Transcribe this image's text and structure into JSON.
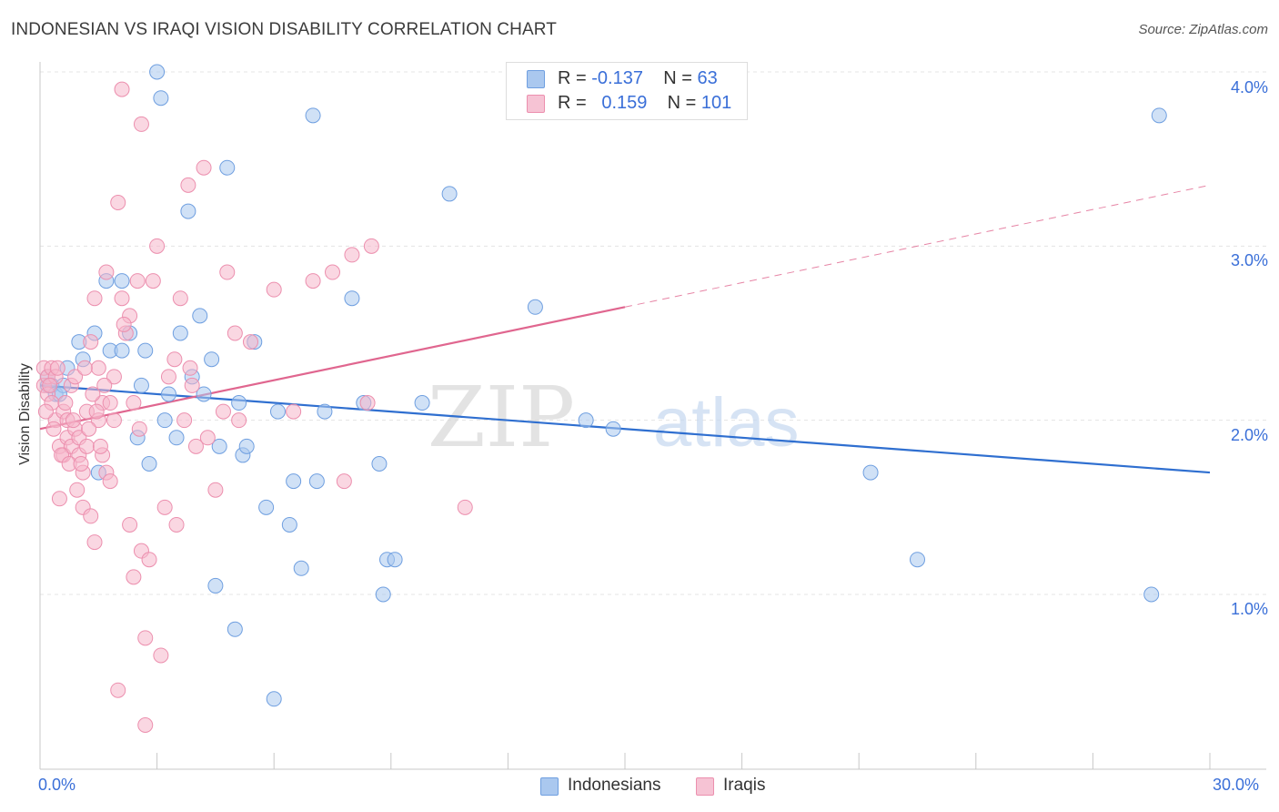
{
  "title": "INDONESIAN VS IRAQI VISION DISABILITY CORRELATION CHART",
  "source": "Source: ZipAtlas.com",
  "watermark": {
    "zip": "ZIP",
    "atlas": "atlas"
  },
  "legend": {
    "rows": [
      {
        "r_label": "R =",
        "r_value": "-0.137",
        "n_label": "N =",
        "n_value": "63"
      },
      {
        "r_label": "R =",
        "r_value": "0.159",
        "n_label": "N =",
        "n_value": "101"
      }
    ]
  },
  "bottom_legend": [
    "Indonesians",
    "Iraqis"
  ],
  "colors": {
    "blue_fill": "#aac8ef",
    "blue_stroke": "#6f9fe0",
    "blue_line": "#2f6fd0",
    "pink_fill": "#f6b6cb",
    "pink_stroke": "#ec8fae",
    "pink_line": "#e0668f",
    "tick_text": "#3a6fd8"
  },
  "chart_data": {
    "type": "scatter",
    "title": "INDONESIAN VS IRAQI VISION DISABILITY CORRELATION CHART",
    "xlabel": "",
    "ylabel": "Vision Disability",
    "xlim": [
      0,
      30
    ],
    "ylim": [
      0,
      4.2
    ],
    "x_tick_labels": [
      "0.0%",
      "30.0%"
    ],
    "y_tick_labels": [
      "1.0%",
      "2.0%",
      "3.0%",
      "4.0%"
    ],
    "y_ticks": [
      1.0,
      2.0,
      3.0,
      4.0
    ],
    "grid": true,
    "legend_position": "top-center",
    "series": [
      {
        "name": "Indonesians",
        "color": "#aac8ef",
        "trend": {
          "x": [
            0,
            30
          ],
          "y": [
            2.2,
            1.7
          ],
          "style": "solid"
        },
        "points": [
          [
            0.2,
            2.2
          ],
          [
            0.2,
            2.25
          ],
          [
            0.3,
            2.2
          ],
          [
            0.4,
            2.15
          ],
          [
            0.6,
            2.2
          ],
          [
            0.7,
            2.3
          ],
          [
            1.0,
            2.45
          ],
          [
            1.1,
            2.35
          ],
          [
            1.4,
            2.5
          ],
          [
            1.5,
            1.7
          ],
          [
            1.7,
            2.8
          ],
          [
            1.8,
            2.4
          ],
          [
            2.1,
            2.4
          ],
          [
            2.1,
            2.8
          ],
          [
            2.3,
            2.5
          ],
          [
            2.5,
            1.9
          ],
          [
            2.6,
            2.2
          ],
          [
            2.7,
            2.4
          ],
          [
            2.8,
            1.75
          ],
          [
            3.0,
            4.0
          ],
          [
            3.1,
            3.85
          ],
          [
            3.2,
            2.0
          ],
          [
            3.3,
            2.15
          ],
          [
            3.5,
            1.9
          ],
          [
            3.6,
            2.5
          ],
          [
            3.8,
            3.2
          ],
          [
            3.9,
            2.25
          ],
          [
            4.1,
            2.6
          ],
          [
            4.2,
            2.15
          ],
          [
            4.4,
            2.35
          ],
          [
            4.5,
            1.05
          ],
          [
            4.6,
            1.85
          ],
          [
            4.8,
            3.45
          ],
          [
            5.0,
            0.8
          ],
          [
            5.1,
            2.1
          ],
          [
            5.2,
            1.8
          ],
          [
            5.3,
            1.85
          ],
          [
            5.5,
            2.45
          ],
          [
            5.8,
            1.5
          ],
          [
            6.0,
            0.4
          ],
          [
            6.1,
            2.05
          ],
          [
            6.4,
            1.4
          ],
          [
            6.5,
            1.65
          ],
          [
            6.7,
            1.15
          ],
          [
            7.0,
            3.75
          ],
          [
            7.1,
            1.65
          ],
          [
            7.3,
            2.05
          ],
          [
            8.0,
            2.7
          ],
          [
            8.3,
            2.1
          ],
          [
            8.7,
            1.75
          ],
          [
            8.8,
            1.0
          ],
          [
            8.9,
            1.2
          ],
          [
            9.1,
            1.2
          ],
          [
            9.8,
            2.1
          ],
          [
            10.5,
            3.3
          ],
          [
            12.7,
            2.65
          ],
          [
            14.0,
            2.0
          ],
          [
            14.7,
            1.95
          ],
          [
            21.3,
            1.7
          ],
          [
            22.5,
            1.2
          ],
          [
            28.5,
            1.0
          ],
          [
            28.7,
            3.75
          ],
          [
            0.5,
            2.15
          ]
        ]
      },
      {
        "name": "Iraqis",
        "color": "#f6b6cb",
        "trend": {
          "x": [
            0,
            15
          ],
          "y": [
            1.95,
            2.65
          ],
          "style": "solid",
          "extended_to": [
            30,
            3.35
          ],
          "extended_style": "dashed"
        },
        "points": [
          [
            0.1,
            2.2
          ],
          [
            0.1,
            2.3
          ],
          [
            0.2,
            2.15
          ],
          [
            0.2,
            2.25
          ],
          [
            0.3,
            2.1
          ],
          [
            0.3,
            2.3
          ],
          [
            0.4,
            2.0
          ],
          [
            0.4,
            2.25
          ],
          [
            0.5,
            1.85
          ],
          [
            0.5,
            1.55
          ],
          [
            0.6,
            2.05
          ],
          [
            0.6,
            1.8
          ],
          [
            0.7,
            2.0
          ],
          [
            0.7,
            1.9
          ],
          [
            0.8,
            1.85
          ],
          [
            0.8,
            2.2
          ],
          [
            0.9,
            1.95
          ],
          [
            0.9,
            2.25
          ],
          [
            1.0,
            1.8
          ],
          [
            1.0,
            1.9
          ],
          [
            1.1,
            1.5
          ],
          [
            1.1,
            1.7
          ],
          [
            1.2,
            2.05
          ],
          [
            1.2,
            1.85
          ],
          [
            1.3,
            1.45
          ],
          [
            1.3,
            2.45
          ],
          [
            1.4,
            2.7
          ],
          [
            1.4,
            1.3
          ],
          [
            1.5,
            2.3
          ],
          [
            1.5,
            2.0
          ],
          [
            1.6,
            2.1
          ],
          [
            1.6,
            1.8
          ],
          [
            1.7,
            2.85
          ],
          [
            1.7,
            1.7
          ],
          [
            1.8,
            1.65
          ],
          [
            1.8,
            2.1
          ],
          [
            1.9,
            2.0
          ],
          [
            1.9,
            2.25
          ],
          [
            2.0,
            0.45
          ],
          [
            2.0,
            3.25
          ],
          [
            2.1,
            2.7
          ],
          [
            2.1,
            3.9
          ],
          [
            2.2,
            2.5
          ],
          [
            2.3,
            1.4
          ],
          [
            2.3,
            2.6
          ],
          [
            2.4,
            1.1
          ],
          [
            2.4,
            2.1
          ],
          [
            2.5,
            2.8
          ],
          [
            2.6,
            1.25
          ],
          [
            2.6,
            3.7
          ],
          [
            2.7,
            0.25
          ],
          [
            2.7,
            0.75
          ],
          [
            2.8,
            1.2
          ],
          [
            2.9,
            2.8
          ],
          [
            3.0,
            3.0
          ],
          [
            3.1,
            0.65
          ],
          [
            3.2,
            1.5
          ],
          [
            3.3,
            2.25
          ],
          [
            3.5,
            1.4
          ],
          [
            3.6,
            2.7
          ],
          [
            3.7,
            2.0
          ],
          [
            3.8,
            3.35
          ],
          [
            3.9,
            2.2
          ],
          [
            4.0,
            1.85
          ],
          [
            4.2,
            3.45
          ],
          [
            4.3,
            1.9
          ],
          [
            4.5,
            1.6
          ],
          [
            4.7,
            2.05
          ],
          [
            4.8,
            2.85
          ],
          [
            5.0,
            2.5
          ],
          [
            5.1,
            2.0
          ],
          [
            5.4,
            2.45
          ],
          [
            6.0,
            2.75
          ],
          [
            6.5,
            2.05
          ],
          [
            7.0,
            2.8
          ],
          [
            7.5,
            2.85
          ],
          [
            7.8,
            1.65
          ],
          [
            8.0,
            2.95
          ],
          [
            8.4,
            2.1
          ],
          [
            8.5,
            3.0
          ],
          [
            10.9,
            1.5
          ],
          [
            0.15,
            2.05
          ],
          [
            0.25,
            2.2
          ],
          [
            0.35,
            1.95
          ],
          [
            0.45,
            2.3
          ],
          [
            0.55,
            1.8
          ],
          [
            0.65,
            2.1
          ],
          [
            0.75,
            1.75
          ],
          [
            0.85,
            2.0
          ],
          [
            0.95,
            1.6
          ],
          [
            1.05,
            1.75
          ],
          [
            1.15,
            2.3
          ],
          [
            1.25,
            1.95
          ],
          [
            1.35,
            2.15
          ],
          [
            1.45,
            2.05
          ],
          [
            1.55,
            1.85
          ],
          [
            1.65,
            2.2
          ],
          [
            2.15,
            2.55
          ],
          [
            2.55,
            1.95
          ],
          [
            3.45,
            2.35
          ],
          [
            3.85,
            2.3
          ]
        ]
      }
    ]
  }
}
